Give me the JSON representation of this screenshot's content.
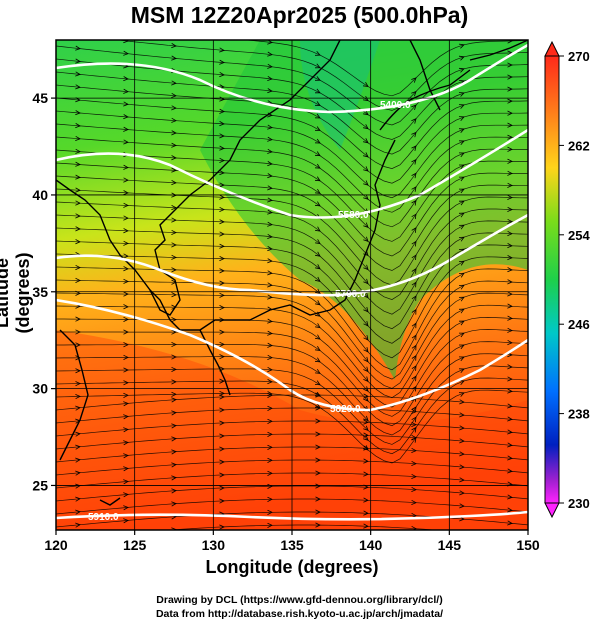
{
  "title": "MSM 12Z20Apr2025 (500.0hPa)",
  "x_axis": {
    "label": "Longitude (degrees)",
    "ticks": [
      120,
      125,
      130,
      135,
      140,
      145,
      150
    ]
  },
  "y_axis": {
    "label": "Latitude  (degrees)",
    "ticks": [
      25,
      30,
      35,
      40,
      45
    ]
  },
  "colorbar": {
    "ticks": [
      "270",
      "262",
      "254",
      "246",
      "238",
      "230"
    ]
  },
  "contours": [
    {
      "value": 5400,
      "label": "5400.0"
    },
    {
      "value": 5580,
      "label": "5580.0"
    },
    {
      "value": 5700,
      "label": "5700.0"
    },
    {
      "value": 5820,
      "label": "5820.0"
    },
    {
      "value": 5910,
      "label": "5910.0"
    }
  ],
  "credits": {
    "line1": "Drawing by DCL (https://www.gfd-dennou.org/library/dcl/)",
    "line2": "Data from http://database.rish.kyoto-u.ac.jp/arch/jmadata/"
  },
  "colors": {
    "warm": "#ff2a00",
    "orange": "#ff9a1a",
    "yellow": "#e6e61a",
    "green": "#22c022",
    "cyan": "#00d0d0",
    "blue": "#0044ff",
    "magenta": "#ff22ff"
  }
}
